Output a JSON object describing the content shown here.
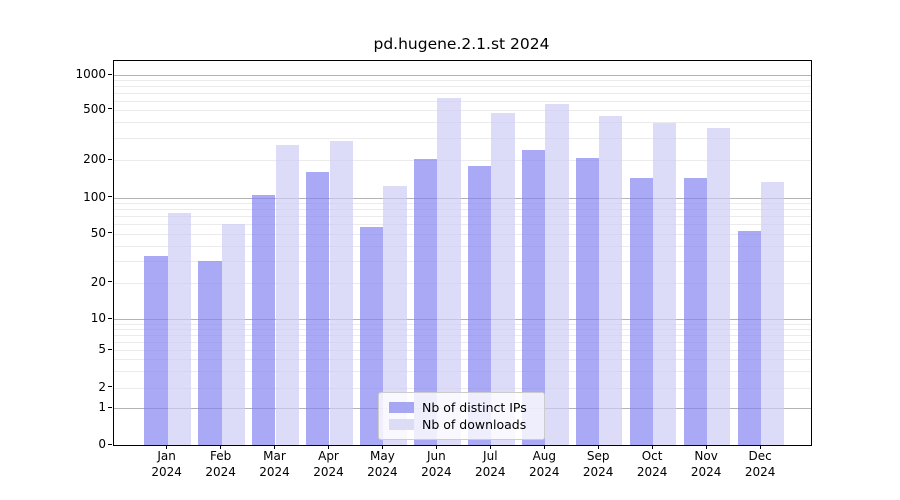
{
  "title": "pd.hugene.2.1.st 2024",
  "year_label": "2024",
  "colors": {
    "ips_bar_hex": "#8484f2",
    "downloads_bar_hex": "#cdcdf5",
    "bar_alpha": 0.7,
    "ips_legend_hex": "#a6a6f2",
    "downloads_legend_hex": "#dcdcf7",
    "major_grid": "#b3b3b3",
    "minor_grid": "#ebebeb",
    "spine": "#000000"
  },
  "chart_data": {
    "type": "bar",
    "title": "pd.hugene.2.1.st 2024",
    "categories": [
      "Jan 2024",
      "Feb 2024",
      "Mar 2024",
      "Apr 2024",
      "May 2024",
      "Jun 2024",
      "Jul 2024",
      "Aug 2024",
      "Sep 2024",
      "Oct 2024",
      "Nov 2024",
      "Dec 2024"
    ],
    "months": [
      "Jan",
      "Feb",
      "Mar",
      "Apr",
      "May",
      "Jun",
      "Jul",
      "Aug",
      "Sep",
      "Oct",
      "Nov",
      "Dec"
    ],
    "series": [
      {
        "name": "Nb of distinct IPs",
        "values": [
          33,
          30,
          105,
          160,
          57,
          205,
          180,
          240,
          210,
          145,
          143,
          53
        ]
      },
      {
        "name": "Nb of downloads",
        "values": [
          75,
          60,
          265,
          285,
          125,
          630,
          475,
          565,
          445,
          390,
          360,
          135
        ]
      }
    ],
    "xlabel": "",
    "ylabel": "",
    "yscale": "log-like (0,1,2,5,10,20,50,100,200,500,1000)",
    "yticks": [
      0,
      1,
      2,
      5,
      10,
      20,
      50,
      100,
      200,
      500,
      1000
    ],
    "ylim": [
      0,
      1000
    ],
    "grid": "horizontal, log minor gridlines",
    "legend_position": "lower center"
  }
}
